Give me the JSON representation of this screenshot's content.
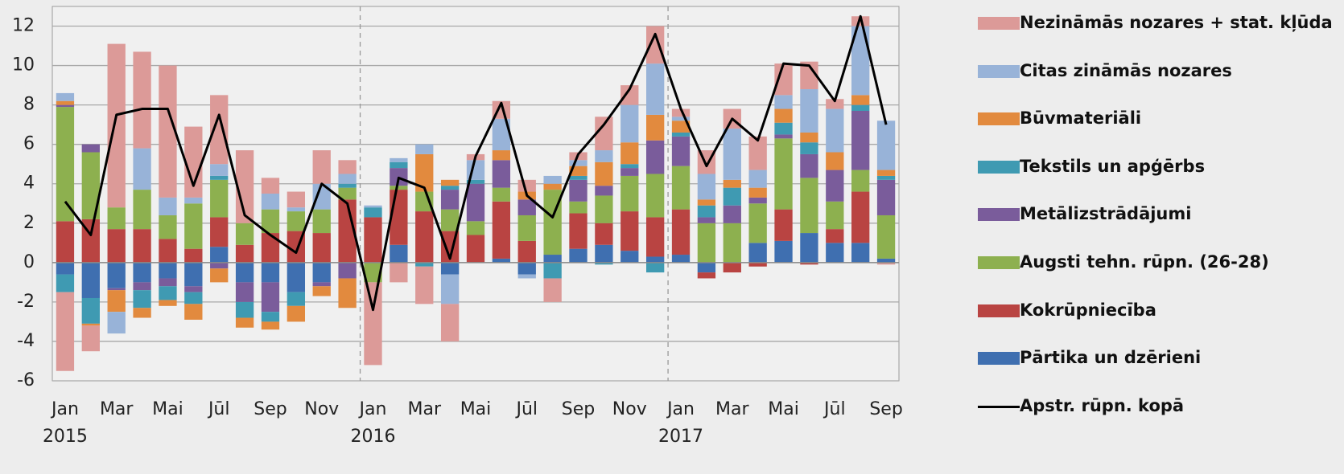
{
  "chart_data": {
    "type": "bar",
    "categories": [
      "Jan",
      null,
      "Mar",
      null,
      "Mai",
      null,
      "Jūl",
      null,
      "Sep",
      null,
      "Nov",
      null,
      "Jan",
      null,
      "Mar",
      null,
      "Mai",
      null,
      "Jūl",
      null,
      "Sep",
      null,
      "Nov",
      null,
      "Jan",
      null,
      "Mar",
      null,
      "Mai",
      null,
      "Jūl",
      null,
      "Sep"
    ],
    "years": [
      "2015",
      "2016",
      "2017"
    ],
    "stacked": true,
    "ylim": [
      -6,
      13
    ],
    "yticks": [
      -6,
      -4,
      -2,
      0,
      2,
      4,
      6,
      8,
      10,
      12
    ],
    "grid": true,
    "series": [
      {
        "name": "Pārtika un dzērieni",
        "color": "#3f6fb0",
        "values": [
          -0.6,
          -1.8,
          -1.3,
          -1.0,
          -0.8,
          -1.2,
          0.8,
          -1.0,
          -1.0,
          -1.5,
          -1.0,
          0,
          0,
          0.9,
          0,
          -0.6,
          0,
          0.2,
          -0.6,
          0.4,
          0.7,
          0.9,
          0.6,
          0.3,
          0.4,
          -0.5,
          0,
          1.0,
          1.1,
          1.5,
          1.0,
          1.0,
          0.2
        ]
      },
      {
        "name": "Kokrūpniecība",
        "color": "#b94442",
        "values": [
          2.1,
          2.2,
          1.7,
          1.7,
          1.2,
          0.7,
          1.5,
          0.9,
          1.5,
          1.6,
          1.5,
          3.2,
          2.3,
          2.8,
          2.6,
          1.6,
          1.4,
          2.9,
          1.1,
          0,
          1.8,
          1.1,
          2.0,
          2.0,
          2.3,
          -0.3,
          -0.5,
          -0.2,
          1.6,
          -0.1,
          0.7,
          2.6,
          0
        ]
      },
      {
        "name": "Augsti tehn. rūpn. (26-28)",
        "color": "#8db04f",
        "values": [
          5.8,
          3.4,
          1.1,
          2.0,
          1.2,
          2.3,
          1.9,
          1.1,
          1.2,
          1.0,
          1.2,
          0.6,
          -1.0,
          0.2,
          1.0,
          1.1,
          0.7,
          0.7,
          1.3,
          3.3,
          0.6,
          1.4,
          1.8,
          2.2,
          2.2,
          2.0,
          2.0,
          2.0,
          3.6,
          2.8,
          1.4,
          1.1,
          2.2
        ]
      },
      {
        "name": "Metālizstrādājumi",
        "color": "#7a5c9b",
        "values": [
          0.1,
          0.4,
          -0.1,
          -0.4,
          -0.4,
          -0.3,
          -0.3,
          -1.0,
          -1.5,
          0,
          -0.2,
          -0.8,
          0,
          0.9,
          0,
          1.0,
          1.9,
          1.4,
          0.8,
          0,
          1.1,
          0.5,
          0.4,
          1.7,
          1.5,
          0.3,
          0.9,
          0.3,
          0.2,
          1.2,
          1.6,
          3.0,
          1.8
        ]
      },
      {
        "name": "Tekstils un apģērbs",
        "color": "#3f9ab2",
        "values": [
          -0.9,
          -1.3,
          0,
          -0.9,
          -0.7,
          -0.6,
          0.2,
          -0.8,
          -0.5,
          -0.7,
          0,
          0.2,
          0.5,
          0.3,
          -0.2,
          0.2,
          0.2,
          0,
          0,
          -0.8,
          0.2,
          -0.1,
          0.2,
          -0.5,
          0.2,
          0.6,
          0.9,
          0,
          0.6,
          0.6,
          0,
          0.3,
          0.2
        ]
      },
      {
        "name": "Būvmateriāli",
        "color": "#e28a3e",
        "values": [
          0.2,
          -0.1,
          -1.1,
          -0.5,
          -0.3,
          -0.8,
          -0.7,
          -0.5,
          -0.4,
          -0.8,
          -0.5,
          -1.5,
          0,
          0,
          1.9,
          0.3,
          0,
          0.5,
          0.4,
          0.3,
          0.5,
          1.2,
          1.1,
          1.3,
          0.6,
          0.3,
          0.4,
          0.5,
          0.7,
          0.5,
          0.9,
          0.5,
          0.3
        ]
      },
      {
        "name": "Citas zināmās nozares",
        "color": "#98b3d8",
        "values": [
          0.4,
          0,
          -1.1,
          2.1,
          0.9,
          0.3,
          0.6,
          0,
          0.8,
          0.2,
          1.3,
          0.5,
          0.1,
          0.2,
          0.5,
          -1.5,
          1.0,
          1.6,
          -0.2,
          0.4,
          0.3,
          0.6,
          1.9,
          2.6,
          0.2,
          1.3,
          2.6,
          0.9,
          0.7,
          2.2,
          2.2,
          3.5,
          2.5
        ]
      },
      {
        "name": "Nezināmās nozares + stat. kļūda",
        "color": "#dc9a98",
        "values": [
          -4.0,
          -1.3,
          8.3,
          4.9,
          6.7,
          3.6,
          3.5,
          3.7,
          0.8,
          0.8,
          1.7,
          0.7,
          -4.2,
          -1.0,
          -1.9,
          -1.9,
          0.3,
          0.9,
          0.6,
          -1.2,
          0.4,
          1.7,
          1.0,
          1.9,
          0.4,
          1.2,
          1.0,
          1.7,
          1.6,
          1.4,
          0.5,
          0.5,
          -0.1
        ]
      }
    ],
    "line": {
      "name": "Apstr. rūpn. kopā",
      "color": "#000000",
      "values": [
        3.1,
        1.4,
        7.5,
        7.8,
        7.8,
        3.9,
        7.5,
        2.4,
        1.4,
        0.5,
        4.0,
        3.0,
        -2.4,
        4.3,
        3.8,
        0.2,
        5.4,
        8.1,
        3.4,
        2.3,
        5.5,
        7.0,
        8.8,
        11.6,
        7.8,
        4.9,
        7.3,
        6.2,
        10.1,
        10.0,
        8.2,
        12.5,
        7.0
      ]
    }
  }
}
